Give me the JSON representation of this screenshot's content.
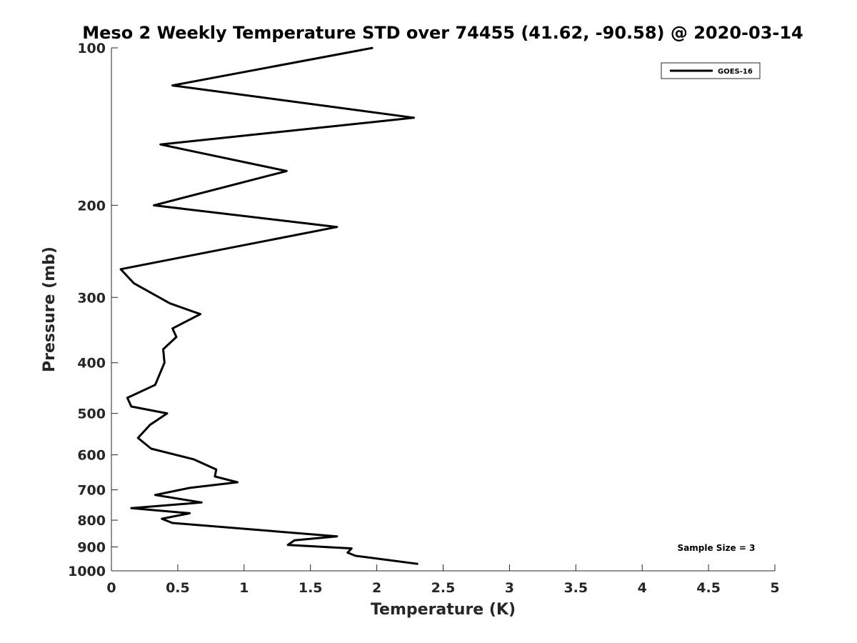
{
  "chart_data": {
    "type": "line",
    "title": "Meso 2 Weekly Temperature STD over 74455 (41.62, -90.58) @ 2020-03-14",
    "xlabel": "Temperature (K)",
    "ylabel": "Pressure (mb)",
    "xlim": [
      0,
      5
    ],
    "ylim": [
      100,
      1000
    ],
    "y_scale": "log",
    "y_reversed": true,
    "x_ticks": [
      "0",
      "0.5",
      "1",
      "1.5",
      "2",
      "2.5",
      "3",
      "3.5",
      "4",
      "4.5",
      "5"
    ],
    "x_tick_values": [
      0,
      0.5,
      1,
      1.5,
      2,
      2.5,
      3,
      3.5,
      4,
      4.5,
      5
    ],
    "y_ticks": [
      "100",
      "200",
      "300",
      "400",
      "500",
      "600",
      "700",
      "800",
      "900",
      "1000"
    ],
    "y_tick_values": [
      100,
      200,
      300,
      400,
      500,
      600,
      700,
      800,
      900,
      1000
    ],
    "grid": false,
    "legend": {
      "position": "top-right",
      "entries": [
        "GOES-16"
      ]
    },
    "annotation": "Sample Size = 3",
    "series": [
      {
        "name": "GOES-16",
        "color": "#000000",
        "points": [
          [
            1.97,
            100
          ],
          [
            0.46,
            118
          ],
          [
            2.28,
            136
          ],
          [
            0.37,
            153
          ],
          [
            1.32,
            172
          ],
          [
            0.32,
            200
          ],
          [
            1.7,
            220
          ],
          [
            0.58,
            250
          ],
          [
            0.07,
            265
          ],
          [
            0.17,
            282
          ],
          [
            0.44,
            308
          ],
          [
            0.67,
            323
          ],
          [
            0.46,
            344
          ],
          [
            0.49,
            357
          ],
          [
            0.39,
            377
          ],
          [
            0.4,
            400
          ],
          [
            0.33,
            441
          ],
          [
            0.12,
            467
          ],
          [
            0.15,
            485
          ],
          [
            0.42,
            500
          ],
          [
            0.29,
            526
          ],
          [
            0.2,
            557
          ],
          [
            0.3,
            584
          ],
          [
            0.62,
            612
          ],
          [
            0.79,
            640
          ],
          [
            0.78,
            660
          ],
          [
            0.95,
            677
          ],
          [
            0.59,
            694
          ],
          [
            0.33,
            716
          ],
          [
            0.68,
            740
          ],
          [
            0.15,
            759
          ],
          [
            0.59,
            776
          ],
          [
            0.38,
            795
          ],
          [
            0.46,
            810
          ],
          [
            1.7,
            859
          ],
          [
            1.38,
            874
          ],
          [
            1.33,
            892
          ],
          [
            1.81,
            906
          ],
          [
            1.78,
            923
          ],
          [
            1.84,
            936
          ],
          [
            2.04,
            950
          ],
          [
            2.31,
            970
          ]
        ]
      }
    ]
  }
}
